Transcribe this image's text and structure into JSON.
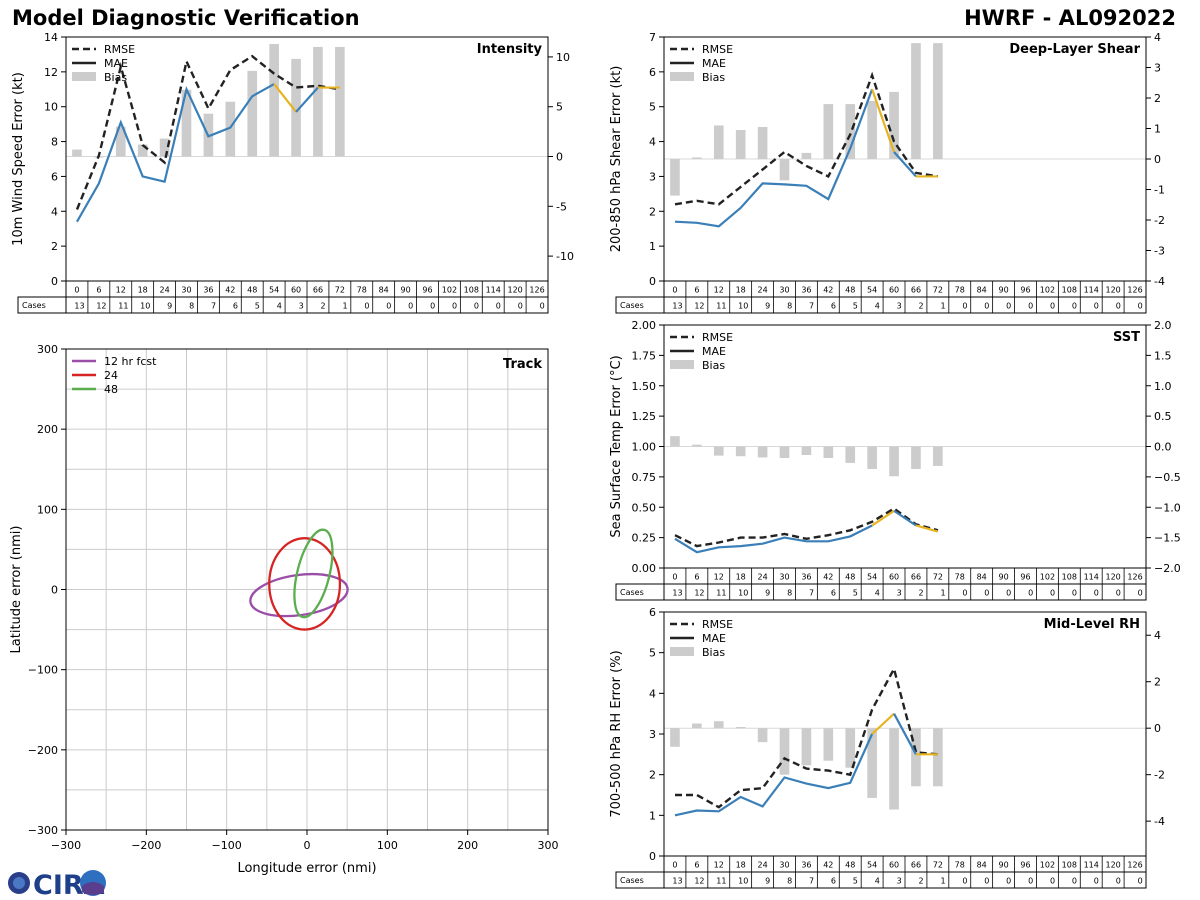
{
  "header": {
    "title": "Model Diagnostic Verification",
    "model_storm": "HWRF - AL092022"
  },
  "logo": {
    "text": "CIRA"
  },
  "colors": {
    "rmse": "#222222",
    "mae": "#3a7fb8",
    "mae_partial": "#e6b422",
    "bias": "#cccccc",
    "fcst12": "#9b4ea8",
    "fcst24": "#d62424",
    "fcst48": "#5aae4e",
    "grid": "#cccccc"
  },
  "chart_data": [
    {
      "id": "intensity",
      "type": "line",
      "title": "Intensity",
      "ylabel": "10m Wind Speed Error (kt)",
      "ylim": [
        0,
        14
      ],
      "yticks": [
        0,
        2,
        4,
        6,
        8,
        10,
        12,
        14
      ],
      "y2lim": [
        -12.5,
        12
      ],
      "y2ticks": [
        -10,
        -5,
        0,
        5,
        10
      ],
      "legend": [
        "RMSE",
        "MAE",
        "Bias"
      ],
      "x": [
        0,
        6,
        12,
        18,
        24,
        30,
        36,
        42,
        48,
        54,
        60,
        66,
        72
      ],
      "rmse": [
        4.1,
        7.2,
        12.3,
        7.8,
        6.8,
        12.6,
        9.9,
        12.1,
        12.9,
        11.9,
        11.1,
        11.2,
        11.0
      ],
      "mae": [
        3.4,
        5.6,
        9.1,
        6.0,
        5.7,
        11.0,
        8.3,
        8.8,
        10.6,
        11.3,
        9.7,
        11.1,
        11.1
      ],
      "bias": [
        0.7,
        -0.1,
        3.0,
        1.2,
        1.8,
        6.7,
        4.3,
        5.5,
        8.6,
        11.3,
        9.8,
        11.0,
        11.0
      ]
    },
    {
      "id": "shear",
      "type": "line",
      "title": "Deep-Layer Shear",
      "ylabel": "200-850 hPa Shear Error (kt)",
      "ylim": [
        0,
        7
      ],
      "yticks": [
        0,
        1,
        2,
        3,
        4,
        5,
        6,
        7
      ],
      "y2lim": [
        -4,
        4
      ],
      "y2ticks": [
        -4,
        -3,
        -2,
        -1,
        0,
        1,
        2,
        3,
        4
      ],
      "legend": [
        "RMSE",
        "MAE",
        "Bias"
      ],
      "x": [
        0,
        6,
        12,
        18,
        24,
        30,
        36,
        42,
        48,
        54,
        60,
        66,
        72
      ],
      "rmse": [
        2.2,
        2.3,
        2.2,
        2.7,
        3.2,
        3.7,
        3.3,
        3.0,
        4.2,
        5.9,
        4.0,
        3.1,
        3.0
      ],
      "mae": [
        1.7,
        1.67,
        1.57,
        2.1,
        2.8,
        2.77,
        2.73,
        2.35,
        3.8,
        5.5,
        3.7,
        3.0,
        3.0
      ],
      "bias": [
        -1.2,
        0.05,
        1.1,
        0.95,
        1.05,
        -0.7,
        0.2,
        1.8,
        1.8,
        1.9,
        2.2,
        3.8,
        3.8
      ]
    },
    {
      "id": "sst",
      "type": "line",
      "title": "SST",
      "ylabel": "Sea Surface Temp Error (°C)",
      "ylim": [
        0,
        2
      ],
      "yticks": [
        "0.00",
        "0.25",
        "0.50",
        "0.75",
        "1.00",
        "1.25",
        "1.50",
        "1.75",
        "2.00"
      ],
      "y2lim": [
        -2,
        2
      ],
      "y2ticks": [
        "−2.0",
        "−1.5",
        "−1.0",
        "−0.5",
        "0.0",
        "0.5",
        "1.0",
        "1.5",
        "2.0"
      ],
      "legend": [
        "RMSE",
        "MAE",
        "Bias"
      ],
      "x": [
        0,
        6,
        12,
        18,
        24,
        30,
        36,
        42,
        48,
        54,
        60,
        66,
        72
      ],
      "rmse": [
        0.27,
        0.18,
        0.21,
        0.25,
        0.25,
        0.28,
        0.24,
        0.27,
        0.31,
        0.38,
        0.49,
        0.36,
        0.31
      ],
      "mae": [
        0.24,
        0.13,
        0.17,
        0.18,
        0.2,
        0.25,
        0.22,
        0.22,
        0.26,
        0.35,
        0.47,
        0.35,
        0.3
      ],
      "bias": [
        0.17,
        0.03,
        -0.15,
        -0.16,
        -0.18,
        -0.19,
        -0.14,
        -0.19,
        -0.27,
        -0.37,
        -0.49,
        -0.37,
        -0.32
      ]
    },
    {
      "id": "rh",
      "type": "line",
      "title": "Mid-Level RH",
      "ylabel": "700-500 hPa RH Error (%)",
      "ylim": [
        0,
        6
      ],
      "yticks": [
        0,
        1,
        2,
        3,
        4,
        5,
        6
      ],
      "y2lim": [
        -5.5,
        5
      ],
      "y2ticks": [
        -4,
        -2,
        0,
        2,
        4
      ],
      "legend": [
        "RMSE",
        "MAE",
        "Bias"
      ],
      "x": [
        0,
        6,
        12,
        18,
        24,
        30,
        36,
        42,
        48,
        54,
        60,
        66,
        72
      ],
      "rmse": [
        1.5,
        1.5,
        1.2,
        1.62,
        1.67,
        2.4,
        2.15,
        2.1,
        2.0,
        3.6,
        4.6,
        2.55,
        2.5
      ],
      "mae": [
        1.0,
        1.12,
        1.1,
        1.45,
        1.22,
        1.93,
        1.78,
        1.67,
        1.8,
        3.0,
        3.5,
        2.5,
        2.5
      ],
      "bias": [
        -0.8,
        0.2,
        0.3,
        0.05,
        -0.6,
        -2.0,
        -1.6,
        -1.4,
        -1.7,
        -3.0,
        -3.5,
        -2.5,
        -2.5
      ]
    },
    {
      "id": "track",
      "type": "scatter",
      "title": "Track",
      "xlabel": "Longitude error (nmi)",
      "ylabel": "Latitude error (nmi)",
      "xlim": [
        -300,
        300
      ],
      "ylim": [
        -300,
        300
      ],
      "ticks": [
        "−300",
        "−200",
        "−100",
        "0",
        "100",
        "200",
        "300"
      ],
      "legend": [
        "12 hr fcst",
        "24",
        "48"
      ],
      "ellipses": [
        {
          "name": "12 hr fcst",
          "cx": -10,
          "cy": -7,
          "rx": 61,
          "ry": 25,
          "rot": -8
        },
        {
          "name": "24",
          "cx": -3,
          "cy": 7,
          "rx": 44,
          "ry": 57,
          "rot": 0
        },
        {
          "name": "48",
          "cx": 8,
          "cy": 20,
          "rx": 20,
          "ry": 56,
          "rot": 14
        }
      ]
    }
  ],
  "table": {
    "cases_label": "Cases",
    "hours": [
      "0",
      "6",
      "12",
      "18",
      "24",
      "30",
      "36",
      "42",
      "48",
      "54",
      "60",
      "66",
      "72",
      "78",
      "84",
      "90",
      "96",
      "102",
      "108",
      "114",
      "120",
      "126"
    ],
    "cases": [
      "13",
      "12",
      "11",
      "10",
      "9",
      "8",
      "7",
      "6",
      "5",
      "4",
      "3",
      "2",
      "1",
      "0",
      "0",
      "0",
      "0",
      "0",
      "0",
      "0",
      "0",
      "0"
    ]
  }
}
